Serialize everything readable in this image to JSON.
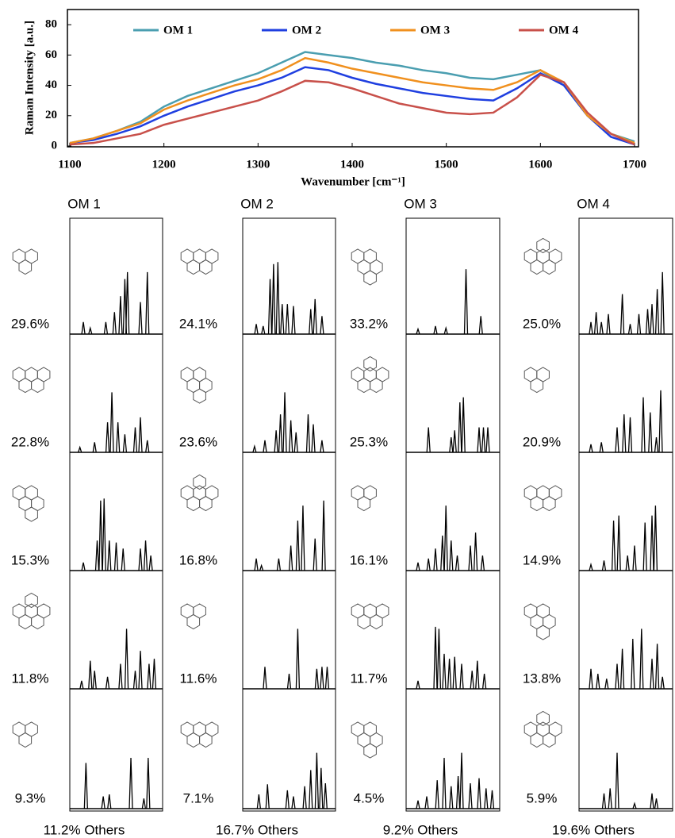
{
  "chart_data": {
    "type": "line",
    "x_label": "Wavenumber [cm⁻¹]",
    "y_label": "Raman Intensity [a.u.]",
    "x": [
      1100,
      1125,
      1150,
      1175,
      1200,
      1225,
      1250,
      1275,
      1300,
      1325,
      1350,
      1375,
      1400,
      1425,
      1450,
      1475,
      1500,
      1525,
      1550,
      1575,
      1600,
      1625,
      1650,
      1675,
      1700
    ],
    "series": [
      {
        "name": "OM 1",
        "color": "#4a9eb0",
        "values": [
          2,
          5,
          10,
          16,
          26,
          33,
          38,
          43,
          48,
          55,
          62,
          60,
          58,
          55,
          53,
          50,
          48,
          45,
          44,
          47,
          50,
          40,
          20,
          8,
          3
        ]
      },
      {
        "name": "OM 2",
        "color": "#1f3fe0",
        "values": [
          2,
          4,
          8,
          13,
          20,
          26,
          31,
          36,
          40,
          45,
          52,
          50,
          45,
          41,
          38,
          35,
          33,
          31,
          30,
          38,
          48,
          40,
          20,
          6,
          1
        ]
      },
      {
        "name": "OM 3",
        "color": "#f0901e",
        "values": [
          2,
          5,
          10,
          15,
          24,
          30,
          35,
          40,
          44,
          50,
          58,
          55,
          51,
          48,
          45,
          42,
          40,
          38,
          37,
          42,
          50,
          42,
          20,
          8,
          2
        ]
      },
      {
        "name": "OM 4",
        "color": "#c8504a",
        "values": [
          1,
          2,
          5,
          8,
          14,
          18,
          22,
          26,
          30,
          36,
          43,
          42,
          38,
          33,
          28,
          25,
          22,
          21,
          22,
          32,
          47,
          42,
          22,
          8,
          1
        ]
      }
    ],
    "xlim": [
      1100,
      1700
    ],
    "xticks": [
      1100,
      1200,
      1300,
      1400,
      1500,
      1600,
      1700
    ],
    "ylim": [
      0,
      90
    ],
    "yticks": [
      0,
      20,
      40,
      60,
      80
    ],
    "legend": "top"
  },
  "panels": [
    {
      "header": "OM 1",
      "others": "11.2% Others",
      "rows": [
        {
          "percent": "29.6%",
          "peaks": [
            [
              12,
              12
            ],
            [
              20,
              6
            ],
            [
              38,
              12
            ],
            [
              48,
              22
            ],
            [
              55,
              38
            ],
            [
              60,
              55
            ],
            [
              63,
              62
            ],
            [
              78,
              32
            ],
            [
              86,
              62
            ]
          ]
        },
        {
          "percent": "22.8%",
          "peaks": [
            [
              8,
              5
            ],
            [
              25,
              10
            ],
            [
              40,
              30
            ],
            [
              45,
              60
            ],
            [
              52,
              30
            ],
            [
              60,
              18
            ],
            [
              72,
              25
            ],
            [
              78,
              35
            ],
            [
              86,
              12
            ]
          ]
        },
        {
          "percent": "15.3%",
          "peaks": [
            [
              12,
              8
            ],
            [
              28,
              30
            ],
            [
              32,
              70
            ],
            [
              36,
              72
            ],
            [
              42,
              30
            ],
            [
              50,
              28
            ],
            [
              58,
              22
            ],
            [
              78,
              22
            ],
            [
              84,
              30
            ],
            [
              90,
              15
            ]
          ]
        },
        {
          "percent": "11.8%",
          "peaks": [
            [
              10,
              8
            ],
            [
              20,
              28
            ],
            [
              25,
              18
            ],
            [
              40,
              12
            ],
            [
              55,
              25
            ],
            [
              62,
              60
            ],
            [
              72,
              18
            ],
            [
              78,
              38
            ],
            [
              88,
              25
            ],
            [
              94,
              30
            ]
          ]
        },
        {
          "percent": "9.3%",
          "peaks": [
            [
              15,
              45
            ],
            [
              35,
              12
            ],
            [
              42,
              14
            ],
            [
              67,
              50
            ],
            [
              82,
              10
            ],
            [
              87,
              50
            ]
          ]
        }
      ]
    },
    {
      "header": "OM 2",
      "others": "16.7% Others",
      "rows": [
        {
          "percent": "24.1%",
          "peaks": [
            [
              12,
              10
            ],
            [
              20,
              8
            ],
            [
              28,
              55
            ],
            [
              32,
              70
            ],
            [
              37,
              72
            ],
            [
              42,
              30
            ],
            [
              48,
              30
            ],
            [
              55,
              28
            ],
            [
              75,
              25
            ],
            [
              80,
              35
            ],
            [
              88,
              18
            ]
          ]
        },
        {
          "percent": "23.6%",
          "peaks": [
            [
              10,
              6
            ],
            [
              22,
              12
            ],
            [
              35,
              22
            ],
            [
              40,
              38
            ],
            [
              45,
              60
            ],
            [
              52,
              32
            ],
            [
              58,
              20
            ],
            [
              72,
              38
            ],
            [
              78,
              28
            ],
            [
              88,
              12
            ]
          ]
        },
        {
          "percent": "16.8%",
          "peaks": [
            [
              12,
              12
            ],
            [
              18,
              5
            ],
            [
              38,
              12
            ],
            [
              52,
              25
            ],
            [
              60,
              50
            ],
            [
              66,
              65
            ],
            [
              80,
              32
            ],
            [
              90,
              70
            ]
          ]
        },
        {
          "percent": "11.6%",
          "peaks": [
            [
              22,
              22
            ],
            [
              50,
              15
            ],
            [
              60,
              60
            ],
            [
              82,
              20
            ],
            [
              88,
              22
            ],
            [
              94,
              22
            ]
          ]
        },
        {
          "percent": "7.1%",
          "peaks": [
            [
              15,
              14
            ],
            [
              25,
              24
            ],
            [
              48,
              18
            ],
            [
              55,
              12
            ],
            [
              68,
              22
            ],
            [
              75,
              38
            ],
            [
              82,
              55
            ],
            [
              87,
              40
            ],
            [
              92,
              25
            ]
          ]
        }
      ]
    },
    {
      "header": "OM 3",
      "others": "9.2% Others",
      "rows": [
        {
          "percent": "33.2%",
          "peaks": [
            [
              10,
              5
            ],
            [
              30,
              8
            ],
            [
              42,
              6
            ],
            [
              65,
              65
            ],
            [
              82,
              18
            ]
          ]
        },
        {
          "percent": "25.3%",
          "peaks": [
            [
              22,
              25
            ],
            [
              48,
              15
            ],
            [
              52,
              22
            ],
            [
              58,
              50
            ],
            [
              62,
              55
            ],
            [
              80,
              25
            ],
            [
              85,
              25
            ],
            [
              90,
              25
            ]
          ]
        },
        {
          "percent": "16.1%",
          "peaks": [
            [
              10,
              8
            ],
            [
              22,
              12
            ],
            [
              30,
              22
            ],
            [
              38,
              35
            ],
            [
              42,
              65
            ],
            [
              48,
              30
            ],
            [
              55,
              15
            ],
            [
              70,
              25
            ],
            [
              76,
              38
            ],
            [
              84,
              15
            ]
          ]
        },
        {
          "percent": "11.7%",
          "peaks": [
            [
              10,
              8
            ],
            [
              30,
              62
            ],
            [
              34,
              60
            ],
            [
              40,
              35
            ],
            [
              46,
              30
            ],
            [
              52,
              32
            ],
            [
              60,
              25
            ],
            [
              72,
              18
            ],
            [
              78,
              28
            ],
            [
              86,
              15
            ]
          ]
        },
        {
          "percent": "4.5%",
          "peaks": [
            [
              10,
              8
            ],
            [
              20,
              12
            ],
            [
              32,
              28
            ],
            [
              40,
              50
            ],
            [
              48,
              22
            ],
            [
              56,
              32
            ],
            [
              60,
              55
            ],
            [
              70,
              25
            ],
            [
              80,
              30
            ],
            [
              88,
              20
            ],
            [
              95,
              18
            ]
          ]
        }
      ]
    },
    {
      "header": "OM 4",
      "others": "19.6% Others",
      "rows": [
        {
          "percent": "25.0%",
          "peaks": [
            [
              10,
              12
            ],
            [
              16,
              22
            ],
            [
              22,
              12
            ],
            [
              30,
              20
            ],
            [
              46,
              40
            ],
            [
              55,
              10
            ],
            [
              65,
              20
            ],
            [
              75,
              25
            ],
            [
              80,
              30
            ],
            [
              86,
              45
            ],
            [
              92,
              62
            ]
          ]
        },
        {
          "percent": "20.9%",
          "peaks": [
            [
              10,
              8
            ],
            [
              22,
              10
            ],
            [
              40,
              25
            ],
            [
              48,
              38
            ],
            [
              55,
              35
            ],
            [
              70,
              55
            ],
            [
              78,
              40
            ],
            [
              85,
              15
            ],
            [
              90,
              62
            ]
          ]
        },
        {
          "percent": "14.9%",
          "peaks": [
            [
              10,
              6
            ],
            [
              25,
              10
            ],
            [
              36,
              50
            ],
            [
              42,
              55
            ],
            [
              52,
              15
            ],
            [
              60,
              25
            ],
            [
              72,
              48
            ],
            [
              80,
              55
            ],
            [
              84,
              65
            ]
          ]
        },
        {
          "percent": "13.8%",
          "peaks": [
            [
              10,
              20
            ],
            [
              18,
              15
            ],
            [
              28,
              10
            ],
            [
              40,
              25
            ],
            [
              46,
              40
            ],
            [
              58,
              50
            ],
            [
              68,
              60
            ],
            [
              80,
              30
            ],
            [
              86,
              45
            ],
            [
              92,
              12
            ]
          ]
        },
        {
          "percent": "5.9%",
          "peaks": [
            [
              25,
              15
            ],
            [
              32,
              20
            ],
            [
              40,
              55
            ],
            [
              60,
              5
            ],
            [
              80,
              15
            ],
            [
              85,
              10
            ]
          ]
        }
      ]
    }
  ]
}
